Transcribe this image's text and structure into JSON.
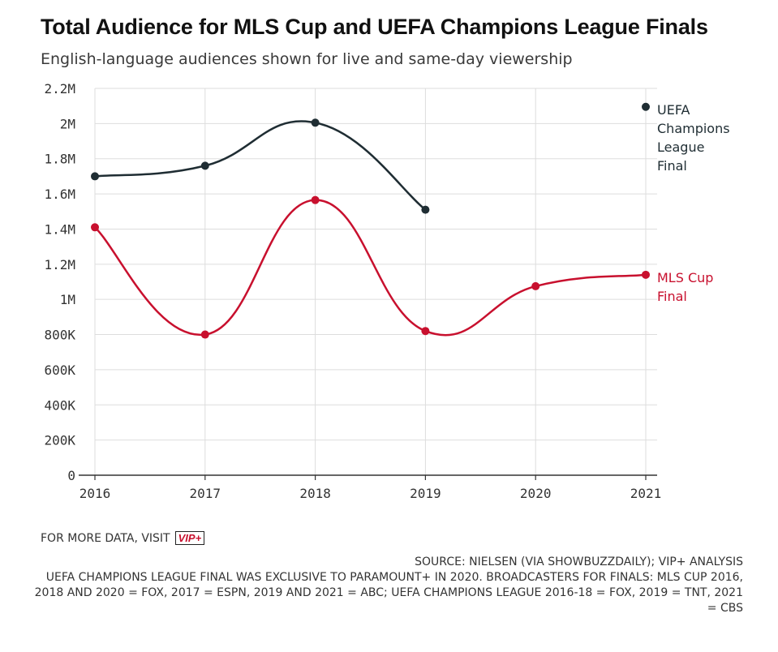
{
  "header": {
    "title": "Total Audience for MLS Cup and UEFA Champions League Finals",
    "subtitle": "English-language audiences shown for live and same-day viewership"
  },
  "footer": {
    "more_data_text": "FOR MORE DATA, VISIT",
    "vip_badge": "VIP+",
    "source": "SOURCE: NIELSEN (VIA SHOWBUZZDAILY); VIP+ ANALYSIS",
    "note": "UEFA CHAMPIONS LEAGUE FINAL WAS EXCLUSIVE TO PARAMOUNT+ IN 2020. BROADCASTERS FOR FINALS: MLS CUP 2016, 2018 AND 2020 = FOX, 2017 = ESPN, 2019 AND 2021 = ABC; UEFA CHAMPIONS LEAGUE 2016-18 = FOX, 2019 = TNT, 2021 = CBS"
  },
  "colors": {
    "uefa": "#1f2d33",
    "mls": "#c8102e",
    "grid": "#dddddd",
    "axis": "#333333"
  },
  "chart_data": {
    "type": "line",
    "title": "Total Audience for MLS Cup and UEFA Champions League Finals",
    "subtitle": "English-language audiences shown for live and same-day viewership",
    "x": [
      "2016",
      "2017",
      "2018",
      "2019",
      "2020",
      "2021"
    ],
    "ylim": [
      0,
      2200000
    ],
    "y_ticks": [
      0,
      200000,
      400000,
      600000,
      800000,
      1000000,
      1200000,
      1400000,
      1600000,
      1800000,
      2000000,
      2200000
    ],
    "y_tick_labels": [
      "0",
      "200K",
      "400K",
      "600K",
      "800K",
      "1M",
      "1.2M",
      "1.4M",
      "1.6M",
      "1.8M",
      "2M",
      "2.2M"
    ],
    "grid": true,
    "legend": "direct labels at right",
    "series": [
      {
        "name": "UEFA Champions League Final",
        "label_lines": [
          "UEFA",
          "Champions",
          "League",
          "Final"
        ],
        "color": "#1f2d33",
        "values": [
          1700000,
          1760000,
          2005000,
          1510000,
          null,
          2095000
        ]
      },
      {
        "name": "MLS Cup Final",
        "label_lines": [
          "MLS Cup",
          "Final"
        ],
        "color": "#c8102e",
        "values": [
          1410000,
          800000,
          1565000,
          820000,
          1075000,
          1140000
        ]
      }
    ]
  }
}
